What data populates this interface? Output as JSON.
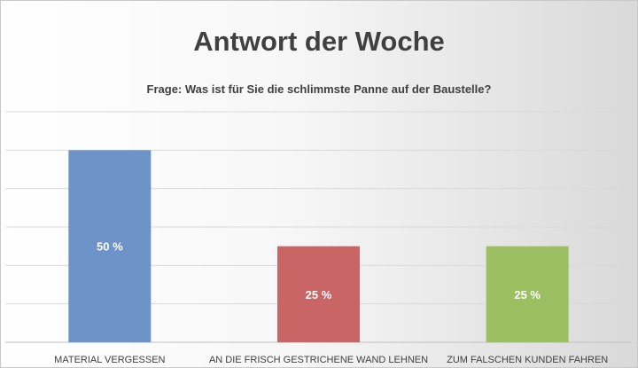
{
  "chart_data": {
    "type": "bar",
    "title": "Antwort der Woche",
    "subtitle": "Frage: Was ist für Sie die schlimmste Panne auf der Baustelle?",
    "categories": [
      "MATERIAL VERGESSEN",
      "AN DIE FRISCH GESTRICHENE WAND LEHNEN",
      "ZUM FALSCHEN KUNDEN FAHREN"
    ],
    "values": [
      50,
      25,
      25
    ],
    "data_labels": [
      "50 %",
      "25 %",
      "25 %"
    ],
    "colors": [
      "#6d93c9",
      "#c96565",
      "#9cbf62"
    ],
    "ylim": [
      0,
      60
    ],
    "grid": true,
    "legend": "none"
  }
}
